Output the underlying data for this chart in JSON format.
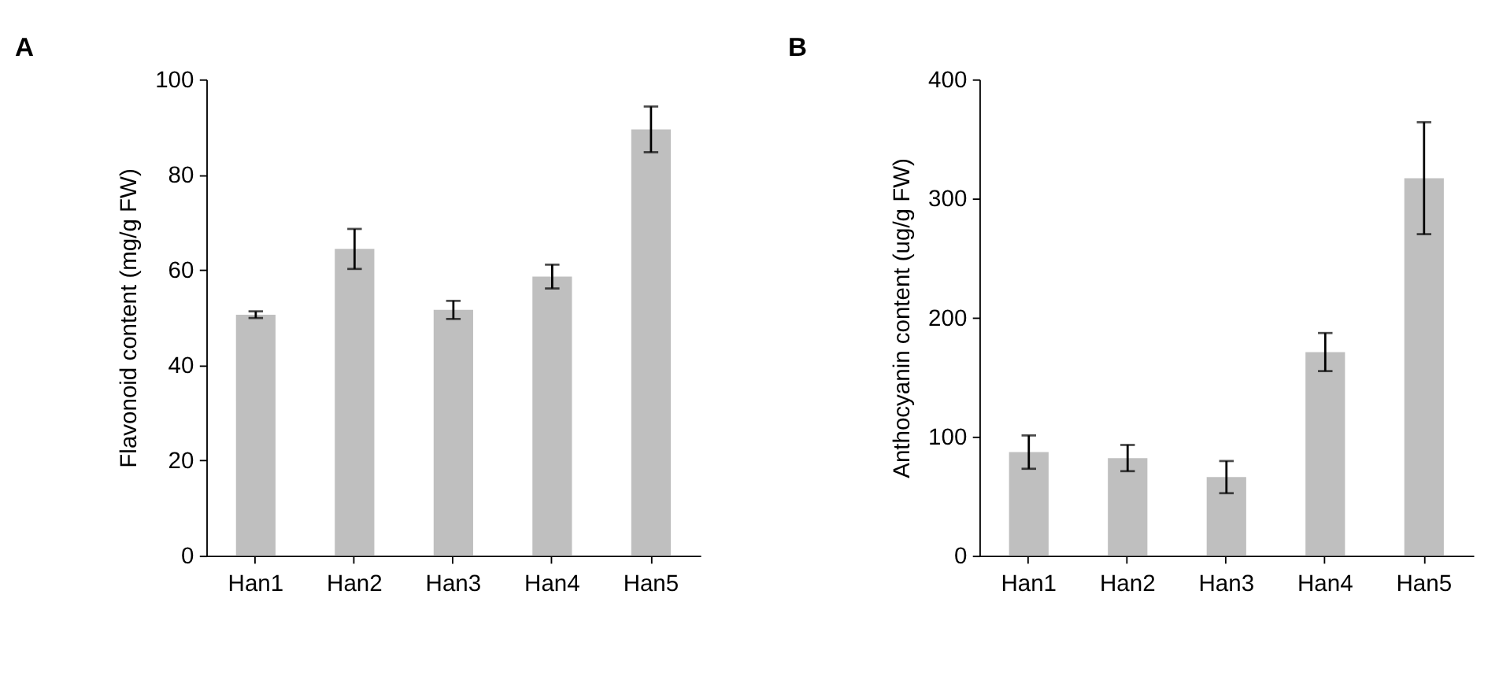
{
  "chart_data": [
    {
      "type": "bar",
      "title": "A",
      "ylabel": "Flavonoid content (mg/g FW)",
      "categories": [
        "Han1",
        "Han2",
        "Han3",
        "Han4",
        "Han5"
      ],
      "values": [
        50.6,
        64.4,
        51.6,
        58.6,
        89.5
      ],
      "errors": [
        0.7,
        4.2,
        1.9,
        2.5,
        4.8
      ],
      "color": "#bfbfbf",
      "ylim": [
        0,
        100
      ],
      "yticks": [
        0,
        20,
        40,
        60,
        80,
        100
      ],
      "grid": false
    },
    {
      "type": "bar",
      "title": "B",
      "ylabel": "Anthocyanin content (ug/g FW)",
      "categories": [
        "Han1",
        "Han2",
        "Han3",
        "Han4",
        "Han5"
      ],
      "values": [
        87,
        82,
        66,
        171,
        317
      ],
      "errors": [
        14,
        11,
        13.5,
        16,
        47
      ],
      "color": "#bfbfbf",
      "ylim": [
        0,
        400
      ],
      "yticks": [
        0,
        100,
        200,
        300,
        400
      ],
      "grid": false
    }
  ]
}
